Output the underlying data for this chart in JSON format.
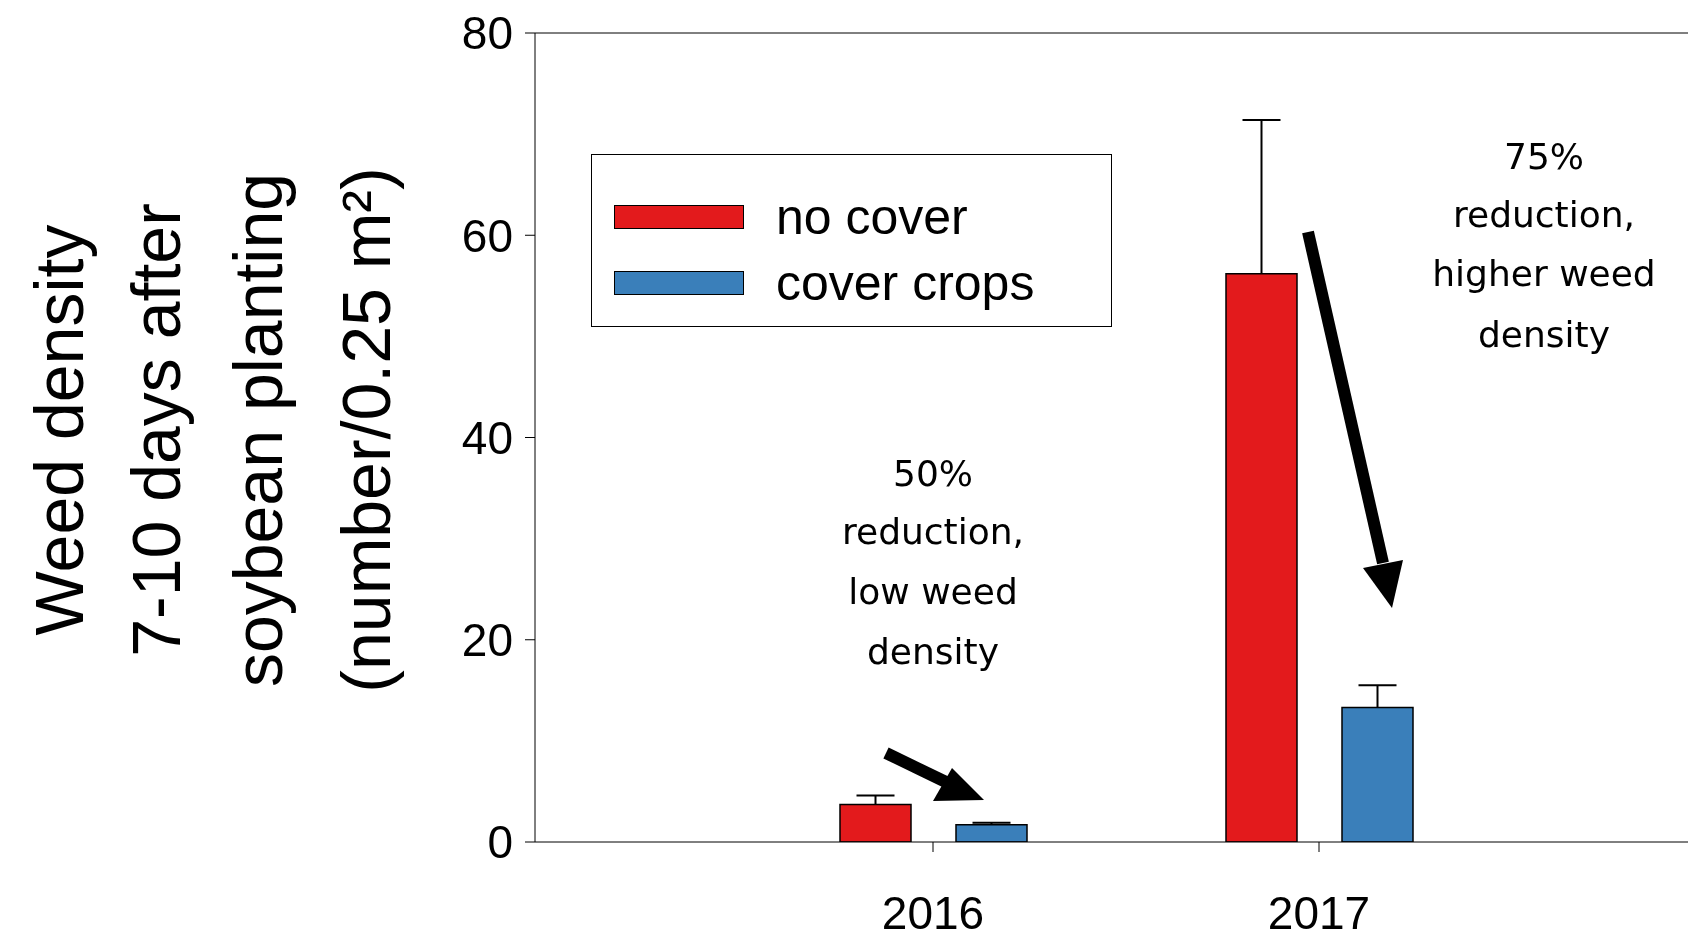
{
  "chart_data": {
    "type": "bar",
    "ylabel": "Weed density\n7-10 days after\nsoybean planting\n(number/0.25 m²)",
    "categories": [
      "2016",
      "2017"
    ],
    "series": [
      {
        "name": "no cover",
        "color": "#e31a1c",
        "values": [
          3.7,
          56.2
        ],
        "errors": [
          [
            3.7,
            4.6
          ],
          [
            56.2,
            71.4
          ]
        ]
      },
      {
        "name": "cover crops",
        "color": "#3a7fba",
        "values": [
          1.7,
          13.3
        ],
        "errors": [
          [
            1.7,
            1.9
          ],
          [
            13.3,
            15.5
          ]
        ]
      }
    ],
    "ylim": [
      0,
      80
    ],
    "yticks": [
      0,
      20,
      40,
      60,
      80
    ],
    "grid": false,
    "legend": "top left",
    "annotations": [
      "50%\nreduction,\nlow weed\ndensity",
      "75%\nreduction,\nhigher weed\ndensity"
    ]
  }
}
